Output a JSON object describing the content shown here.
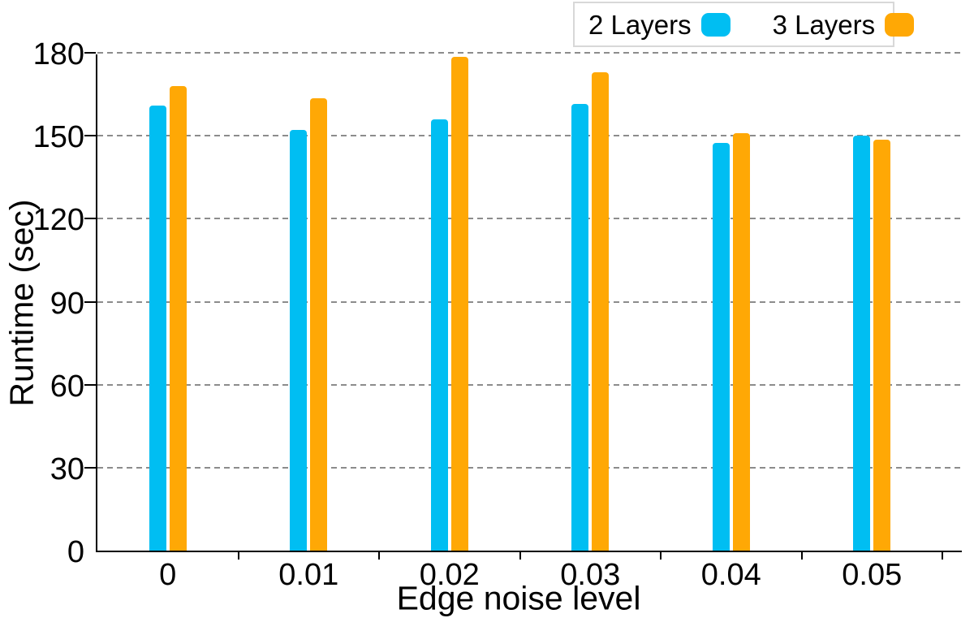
{
  "chart_data": {
    "type": "bar",
    "title": "",
    "xlabel": "Edge noise level",
    "ylabel": "Runtime (sec)",
    "categories": [
      "0",
      "0.01",
      "0.02",
      "0.03",
      "0.04",
      "0.05"
    ],
    "series": [
      {
        "name": "2 Layers",
        "color": "#00BEF2",
        "values": [
          161,
          152,
          156,
          161.5,
          147.5,
          150
        ]
      },
      {
        "name": "3 Layers",
        "color": "#FFA805",
        "values": [
          168,
          163.5,
          178.5,
          173,
          151,
          148.5
        ]
      }
    ],
    "ylim": [
      0,
      180
    ],
    "yticks": [
      0,
      30,
      60,
      90,
      120,
      150,
      180
    ],
    "grid": {
      "axis": "y",
      "style": "dashed",
      "color": "#8c8c8c"
    },
    "legend": {
      "position": "top-right",
      "border_color": "#d8d8d8"
    }
  }
}
